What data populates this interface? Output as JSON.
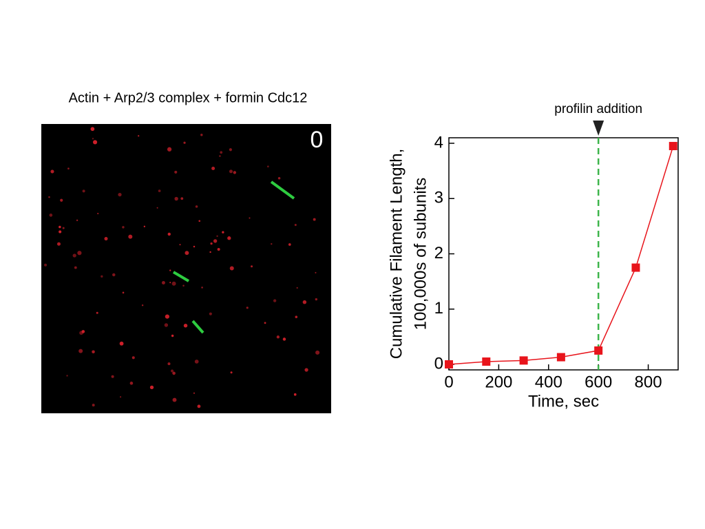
{
  "image": {
    "caption": "Actin + Arp2/3 complex + formin Cdc12",
    "frame_label": "0"
  },
  "chart_data": {
    "type": "line",
    "x": [
      0,
      150,
      300,
      450,
      600,
      750,
      900
    ],
    "series": [
      {
        "name": null,
        "color": "#e8141b",
        "values": [
          0,
          0.05,
          0.07,
          0.13,
          0.25,
          1.75,
          3.95
        ]
      }
    ],
    "xlabel": "Time, sec",
    "ylabel": [
      "Cumulative Filament Length,",
      "100,000s of subunits"
    ],
    "xlim": [
      0,
      920
    ],
    "ylim": [
      -0.1,
      4.1
    ],
    "xticks": [
      0,
      200,
      400,
      600,
      800
    ],
    "yticks": [
      0,
      1,
      2,
      3,
      4
    ],
    "annotations": [
      {
        "text": "profilin addition",
        "x": 600,
        "color": "#3cb44a"
      }
    ]
  }
}
